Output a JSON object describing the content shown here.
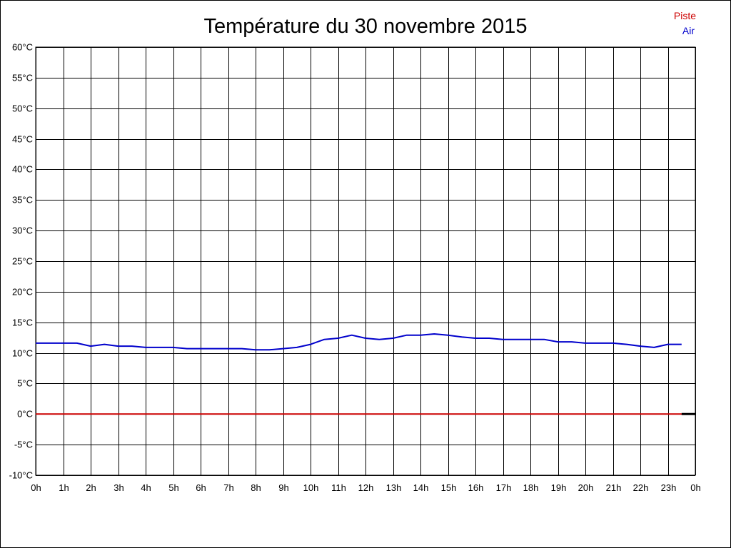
{
  "chart_data": {
    "type": "line",
    "title": "Température du 30 novembre 2015",
    "xlabel": "",
    "ylabel": "",
    "x_ticks": [
      "0h",
      "1h",
      "2h",
      "3h",
      "4h",
      "5h",
      "6h",
      "7h",
      "8h",
      "9h",
      "10h",
      "11h",
      "12h",
      "13h",
      "14h",
      "15h",
      "16h",
      "17h",
      "18h",
      "19h",
      "20h",
      "21h",
      "22h",
      "23h",
      "0h"
    ],
    "y_ticks": [
      "60°C",
      "55°C",
      "50°C",
      "45°C",
      "40°C",
      "35°C",
      "30°C",
      "25°C",
      "20°C",
      "15°C",
      "10°C",
      "5°C",
      "0°C",
      "-5°C",
      "-10°C"
    ],
    "xlim": [
      0,
      24
    ],
    "ylim": [
      -10,
      60
    ],
    "grid": true,
    "legend_position": "top-right",
    "series": [
      {
        "name": "Piste",
        "color": "#cc0000",
        "x": [
          0,
          23.5
        ],
        "y": [
          0,
          0
        ]
      },
      {
        "name": "Air",
        "color": "#0000cc",
        "x": [
          0,
          0.5,
          1,
          1.5,
          2,
          2.5,
          3,
          3.5,
          4,
          4.5,
          5,
          5.5,
          6,
          6.5,
          7,
          7.5,
          8,
          8.5,
          9,
          9.5,
          10,
          10.5,
          11,
          11.5,
          12,
          12.5,
          13,
          13.5,
          14,
          14.5,
          15,
          15.5,
          16,
          16.5,
          17,
          17.5,
          18,
          18.5,
          19,
          19.5,
          20,
          20.5,
          21,
          21.5,
          22,
          22.5,
          23,
          23.5
        ],
        "y": [
          11.6,
          11.6,
          11.6,
          11.6,
          11.1,
          11.4,
          11.1,
          11.1,
          10.9,
          10.9,
          10.9,
          10.7,
          10.7,
          10.7,
          10.7,
          10.7,
          10.5,
          10.5,
          10.7,
          10.9,
          11.4,
          12.2,
          12.4,
          12.9,
          12.4,
          12.2,
          12.4,
          12.9,
          12.9,
          13.1,
          12.9,
          12.6,
          12.4,
          12.4,
          12.2,
          12.2,
          12.2,
          12.2,
          11.8,
          11.8,
          11.6,
          11.6,
          11.6,
          11.4,
          11.1,
          10.9,
          11.4,
          11.4
        ]
      }
    ],
    "baseline_segment": {
      "color": "#000000",
      "x": [
        23.5,
        24
      ],
      "y": [
        0,
        0
      ]
    }
  },
  "legend": {
    "piste_label": "Piste",
    "air_label": "Air",
    "piste_color": "#cc0000",
    "air_color": "#0000cc"
  }
}
